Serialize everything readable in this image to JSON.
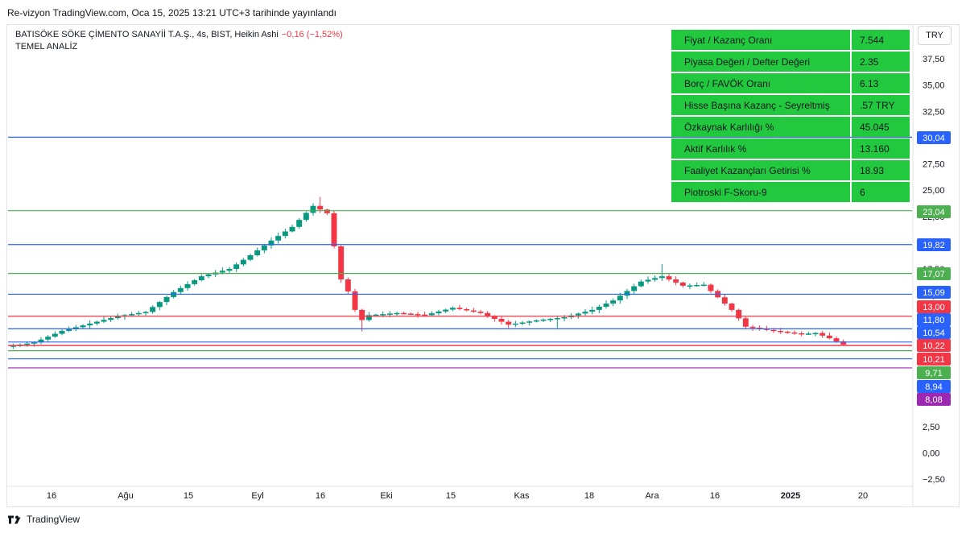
{
  "header": {
    "published_text": "Re-vizyon TradingView.com, Oca 15, 2025 13:21 UTC+3 tarihinde yayınlandı"
  },
  "legend": {
    "symbol_line": "BATISÖKE SÖKE ÇİMENTO SANAYİİ T.A.Ş., 4s, BIST, Heikin Ashi",
    "change": "−0,16 (−1,52%)",
    "study": "TEMEL ANALİZ"
  },
  "currency": "TRY",
  "footer": {
    "brand": "TradingView"
  },
  "colors": {
    "up": "#089981",
    "down": "#f23645",
    "blue": "#2962ff",
    "green": "#4caf50",
    "red": "#f23645",
    "purple": "#9c27b0",
    "table_bg": "#22c93f"
  },
  "fundamentals": [
    {
      "label": "Fiyat / Kazanç Oranı",
      "value": "7.544"
    },
    {
      "label": "Piyasa Değeri / Defter Değeri",
      "value": "2.35"
    },
    {
      "label": "Borç / FAVÖK Oranı",
      "value": "6.13"
    },
    {
      "label": "Hisse Başına Kazanç - Seyreltmiş",
      "value": ".57  TRY"
    },
    {
      "label": "Özkaynak Karlılığı %",
      "value": "45.045"
    },
    {
      "label": "Aktif Karlılık %",
      "value": "13.160"
    },
    {
      "label": "Faaliyet Kazançları Getirisi %",
      "value": "18.93"
    },
    {
      "label": "Piotroski F-Skoru-9",
      "value": "6"
    }
  ],
  "chart_data": {
    "type": "candlestick",
    "chart_style": "Heikin Ashi",
    "interval": "4s",
    "y_axis": {
      "ticks": [
        -2.5,
        0,
        2.5,
        5,
        7.5,
        10,
        12.5,
        15,
        17.5,
        20,
        22.5,
        25,
        27.5,
        30,
        32.5,
        35,
        37.5
      ],
      "tick_labels": [
        "−2,50",
        "0,00",
        "2,50",
        "5,00",
        "7,50",
        "10,00",
        "12,50",
        "15,00",
        "17,50",
        "20,00",
        "22,50",
        "25,00",
        "27,50",
        "30,00",
        "32,50",
        "35,00",
        "37,50"
      ],
      "range": [
        -3.3,
        40.4
      ]
    },
    "x_axis": {
      "labels": [
        "16",
        "Ağu",
        "15",
        "Eyl",
        "16",
        "Eki",
        "15",
        "Kas",
        "18",
        "Ara",
        "16",
        "2025",
        "20"
      ],
      "bold": [
        "2025"
      ]
    },
    "price_path": [
      [
        0,
        10.1
      ],
      [
        4,
        10.5
      ],
      [
        8,
        11.6
      ],
      [
        12,
        12.3
      ],
      [
        16,
        13.0
      ],
      [
        20,
        13.4
      ],
      [
        24,
        15.3
      ],
      [
        28,
        16.8
      ],
      [
        32,
        17.5
      ],
      [
        35,
        18.8
      ],
      [
        38,
        20.2
      ],
      [
        41,
        21.5
      ],
      [
        44,
        23.5
      ],
      [
        46,
        22.8
      ],
      [
        48,
        16.5
      ],
      [
        49.5,
        14.8
      ],
      [
        50.5,
        12.4
      ],
      [
        52,
        13.1
      ],
      [
        56,
        13.3
      ],
      [
        60,
        13.1
      ],
      [
        64,
        13.8
      ],
      [
        68,
        13.3
      ],
      [
        72,
        12.2
      ],
      [
        76,
        12.6
      ],
      [
        80,
        12.9
      ],
      [
        84,
        13.6
      ],
      [
        87,
        14.5
      ],
      [
        91,
        16.3
      ],
      [
        94,
        16.8
      ],
      [
        97,
        15.9
      ],
      [
        100,
        16.0
      ],
      [
        102,
        14.8
      ],
      [
        104,
        13.6
      ],
      [
        106,
        12.0
      ],
      [
        110,
        11.6
      ],
      [
        114,
        11.3
      ],
      [
        116,
        11.4
      ],
      [
        118,
        10.9
      ],
      [
        120,
        10.3
      ]
    ],
    "horizontal_levels": [
      {
        "value": 30.04,
        "label": "30,04",
        "color": "#2962ff"
      },
      {
        "value": 23.04,
        "label": "23,04",
        "color": "#4caf50"
      },
      {
        "value": 19.82,
        "label": "19,82",
        "color": "#2962ff"
      },
      {
        "value": 17.07,
        "label": "17,07",
        "color": "#4caf50"
      },
      {
        "value": 15.09,
        "label": "15,09",
        "color": "#2962ff"
      },
      {
        "value": 13.0,
        "label": "13,00",
        "color": "#f23645"
      },
      {
        "value": 11.8,
        "label": "11,80",
        "color": "#2962ff"
      },
      {
        "value": 10.54,
        "label": "10,54",
        "color": "#2962ff"
      },
      {
        "value": 10.22,
        "label": "10,22",
        "color": "#f23645"
      },
      {
        "value": 10.21,
        "label": "10,21",
        "color": "#f23645"
      },
      {
        "value": 9.71,
        "label": "9,71",
        "color": "#4caf50"
      },
      {
        "value": 8.94,
        "label": "8,94",
        "color": "#2962ff"
      },
      {
        "value": 8.08,
        "label": "8,08",
        "color": "#9c27b0"
      }
    ]
  }
}
